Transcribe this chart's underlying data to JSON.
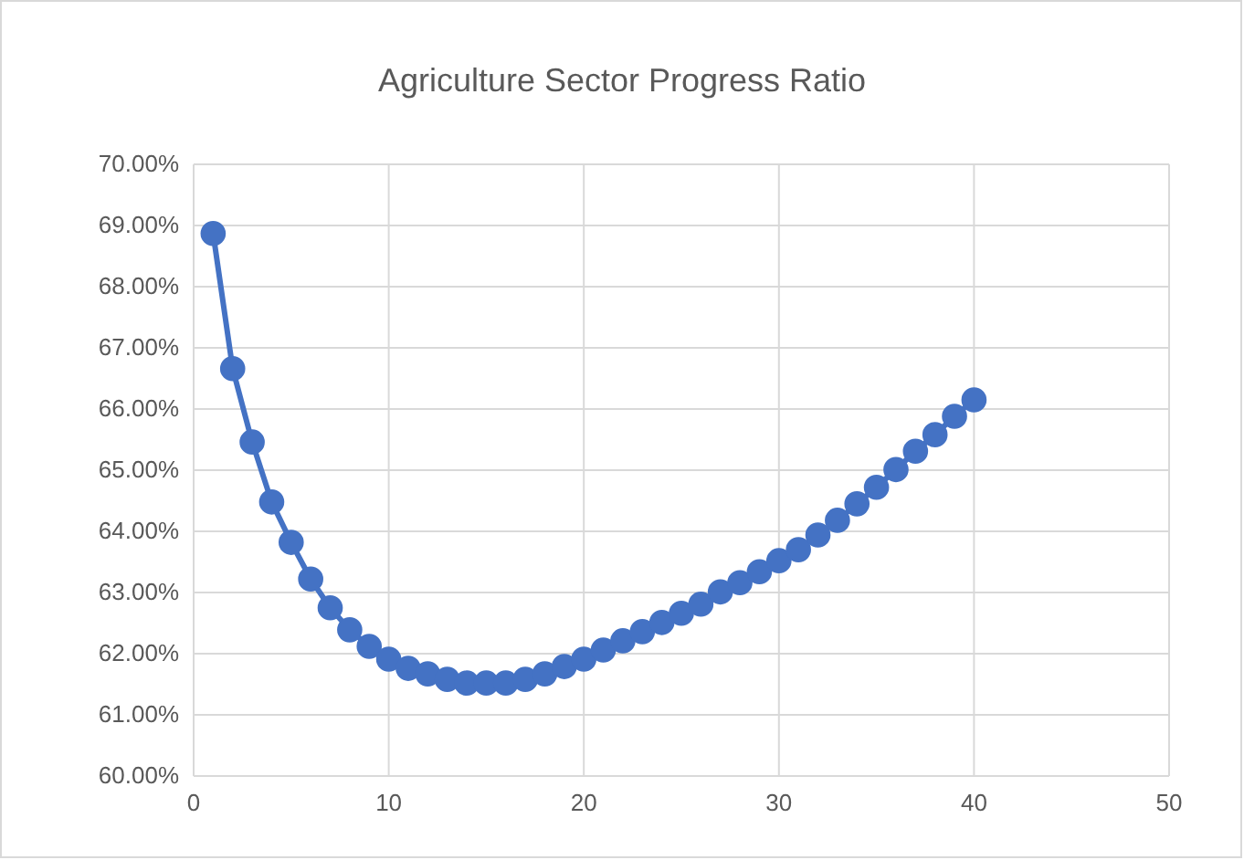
{
  "chart_data": {
    "type": "line",
    "title": "Agriculture Sector Progress Ratio",
    "x": [
      1,
      2,
      3,
      4,
      5,
      6,
      7,
      8,
      9,
      10,
      11,
      12,
      13,
      14,
      15,
      16,
      17,
      18,
      19,
      20,
      21,
      22,
      23,
      24,
      25,
      26,
      27,
      28,
      29,
      30,
      31,
      32,
      33,
      34,
      35,
      36,
      37,
      38,
      39,
      40
    ],
    "series": [
      {
        "color": "#4472c4",
        "values": [
          68.87,
          66.66,
          65.46,
          64.48,
          63.82,
          63.22,
          62.75,
          62.39,
          62.12,
          61.91,
          61.76,
          61.67,
          61.58,
          61.52,
          61.52,
          61.52,
          61.58,
          61.67,
          61.79,
          61.91,
          62.06,
          62.21,
          62.36,
          62.51,
          62.66,
          62.81,
          63.01,
          63.16,
          63.34,
          63.52,
          63.7,
          63.94,
          64.18,
          64.45,
          64.72,
          65.01,
          65.31,
          65.58,
          65.88,
          66.15
        ]
      }
    ],
    "xlim": [
      0,
      50
    ],
    "xticks": [
      0,
      10,
      20,
      30,
      40,
      50
    ],
    "ylim": [
      60,
      70
    ],
    "yticks": [
      {
        "value": 60,
        "label": "60.00%"
      },
      {
        "value": 61,
        "label": "61.00%"
      },
      {
        "value": 62,
        "label": "62.00%"
      },
      {
        "value": 63,
        "label": "63.00%"
      },
      {
        "value": 64,
        "label": "64.00%"
      },
      {
        "value": 65,
        "label": "65.00%"
      },
      {
        "value": 66,
        "label": "66.00%"
      },
      {
        "value": 67,
        "label": "67.00%"
      },
      {
        "value": 68,
        "label": "68.00%"
      },
      {
        "value": 69,
        "label": "69.00%"
      },
      {
        "value": 70,
        "label": "70.00%"
      }
    ],
    "grid": true,
    "marker": "circle",
    "line_style": "solid"
  }
}
